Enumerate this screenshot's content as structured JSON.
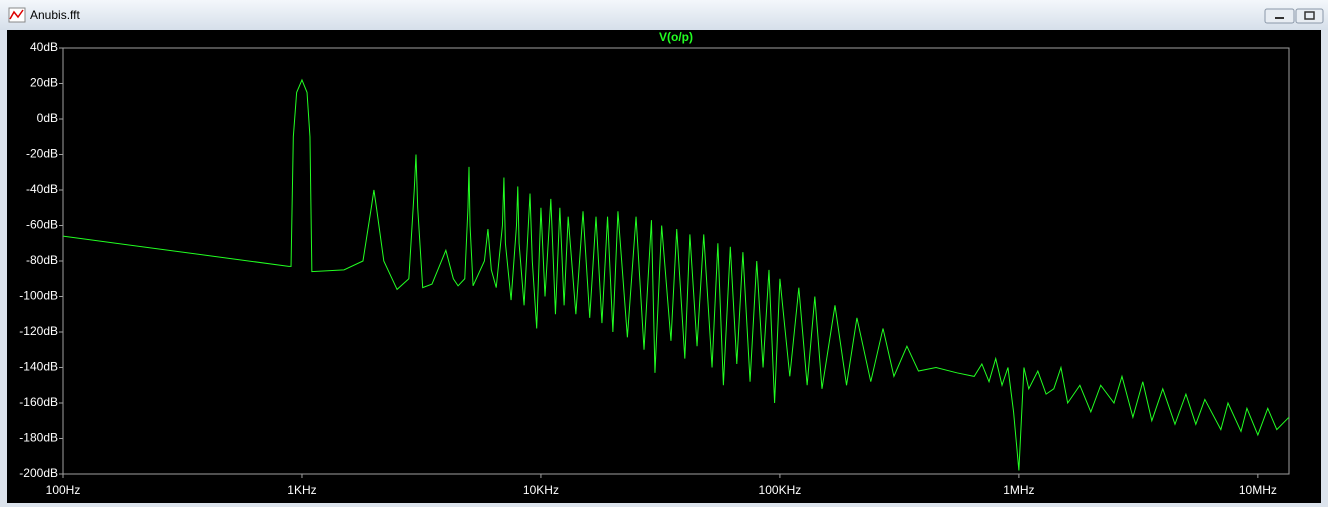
{
  "window": {
    "title": "Anubis.fft"
  },
  "chart_data": {
    "type": "line",
    "xscale": "log",
    "x": [
      100,
      880,
      900,
      920,
      950,
      1000,
      1050,
      1080,
      1100,
      1500,
      1800,
      1950,
      2000,
      2050,
      2200,
      2500,
      2800,
      2950,
      3000,
      3050,
      3200,
      3500,
      4000,
      4300,
      4500,
      4800,
      4950,
      5000,
      5050,
      5200,
      5800,
      6000,
      6200,
      6500,
      6900,
      7000,
      7100,
      7500,
      7900,
      8000,
      8100,
      8500,
      9000,
      9200,
      9600,
      10000,
      10400,
      11000,
      11500,
      12000,
      12500,
      13000,
      14000,
      15000,
      16000,
      17000,
      18000,
      19000,
      20000,
      21000,
      23000,
      25000,
      27000,
      29000,
      30000,
      32000,
      35000,
      37000,
      40000,
      42000,
      45000,
      48000,
      52000,
      55000,
      58000,
      62000,
      66000,
      70000,
      75000,
      80000,
      85000,
      90000,
      95000,
      100000,
      110000,
      120000,
      130000,
      140000,
      150000,
      170000,
      190000,
      210000,
      240000,
      270000,
      300000,
      340000,
      380000,
      450000,
      550000,
      650000,
      700000,
      750000,
      800000,
      850000,
      900000,
      950000,
      1000000,
      1050000,
      1100000,
      1200000,
      1300000,
      1400000,
      1500000,
      1600000,
      1800000,
      2000000,
      2200000,
      2500000,
      2700000,
      3000000,
      3300000,
      3600000,
      4000000,
      4500000,
      5000000,
      5500000,
      6000000,
      7000000,
      7500000,
      8500000,
      9000000,
      10000000,
      11000000,
      12000000,
      13500000
    ],
    "series": [
      {
        "name": "V(o/p)",
        "color": "#22ff22",
        "values": [
          -66,
          -83,
          -83,
          -10,
          15,
          22,
          15,
          -10,
          -86,
          -85,
          -80,
          -50,
          -40,
          -50,
          -80,
          -96,
          -90,
          -40,
          -20,
          -50,
          -95,
          -93,
          -74,
          -90,
          -94,
          -90,
          -50,
          -27,
          -60,
          -94,
          -80,
          -62,
          -85,
          -95,
          -60,
          -33,
          -70,
          -102,
          -60,
          -38,
          -70,
          -105,
          -42,
          -80,
          -118,
          -50,
          -100,
          -45,
          -110,
          -50,
          -105,
          -55,
          -110,
          -52,
          -112,
          -55,
          -115,
          -55,
          -120,
          -52,
          -123,
          -55,
          -130,
          -57,
          -143,
          -60,
          -125,
          -62,
          -135,
          -65,
          -128,
          -65,
          -140,
          -70,
          -150,
          -72,
          -138,
          -75,
          -148,
          -80,
          -140,
          -85,
          -160,
          -90,
          -145,
          -95,
          -150,
          -100,
          -152,
          -105,
          -150,
          -112,
          -148,
          -118,
          -145,
          -128,
          -142,
          -140,
          -143,
          -145,
          -138,
          -148,
          -135,
          -150,
          -140,
          -165,
          -198,
          -140,
          -152,
          -142,
          -155,
          -152,
          -140,
          -160,
          -150,
          -165,
          -150,
          -160,
          -145,
          -168,
          -148,
          -170,
          -152,
          -172,
          -155,
          -172,
          -158,
          -175,
          -160,
          -176,
          -163,
          -178,
          -163,
          -175,
          -168
        ]
      }
    ],
    "xlim": [
      100,
      13500000
    ],
    "xticks": [
      {
        "value": 100,
        "label": "100Hz"
      },
      {
        "value": 1000,
        "label": "1KHz"
      },
      {
        "value": 10000,
        "label": "10KHz"
      },
      {
        "value": 100000,
        "label": "100KHz"
      },
      {
        "value": 1000000,
        "label": "1MHz"
      },
      {
        "value": 10000000,
        "label": "10MHz"
      }
    ],
    "ylim": [
      -200,
      40
    ],
    "yticks": [
      {
        "value": 40,
        "label": "40dB"
      },
      {
        "value": 20,
        "label": "20dB"
      },
      {
        "value": 0,
        "label": "0dB"
      },
      {
        "value": -20,
        "label": "-20dB"
      },
      {
        "value": -40,
        "label": "-40dB"
      },
      {
        "value": -60,
        "label": "-60dB"
      },
      {
        "value": -80,
        "label": "-80dB"
      },
      {
        "value": -100,
        "label": "-100dB"
      },
      {
        "value": -120,
        "label": "-120dB"
      },
      {
        "value": -140,
        "label": "-140dB"
      },
      {
        "value": -160,
        "label": "-160dB"
      },
      {
        "value": -180,
        "label": "-180dB"
      },
      {
        "value": -200,
        "label": "-200dB"
      }
    ],
    "grid": false
  }
}
